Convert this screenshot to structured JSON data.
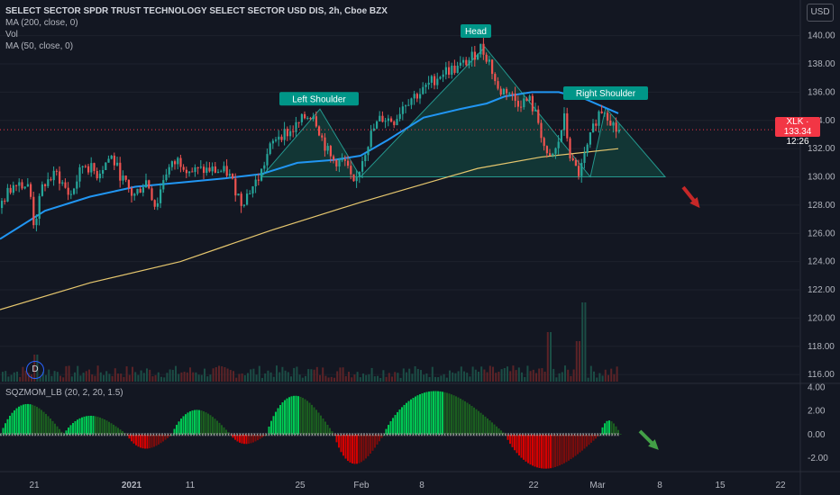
{
  "legend": {
    "title": "SELECT SECTOR SPDR TRUST TECHNOLOGY SELECT SECTOR USD DIS, 2h, Cboe BZX",
    "lines": [
      "MA (200, close, 0)",
      "Vol",
      "MA (50, close, 0)"
    ]
  },
  "indicator_label": "SQZMOM_LB (20, 2, 20, 1.5)",
  "currency": "USD",
  "last_price": {
    "ticker": "XLK",
    "price": "133.34",
    "countdown": "12:26"
  },
  "interval_badge": "D",
  "colors": {
    "up": "#26a69a",
    "down": "#ef5350",
    "ma50": "#2196f3",
    "ma200": "#e6c76e",
    "pattern_fill": "#123a38",
    "pattern_line": "#26a69a",
    "mom_up": "#00c853",
    "mom_up_dim": "#1b5e20",
    "mom_down": "#d50000",
    "mom_down_dim": "#7a0c0c",
    "arrow_down": "#c62828",
    "arrow_green": "#43a047"
  },
  "chart_data": {
    "type": "candlestick",
    "x_ticks": [
      "21",
      "2021",
      "11",
      "25",
      "Feb",
      "8",
      "22",
      "Mar",
      "8",
      "15",
      "22"
    ],
    "y_ticks": [
      "140.00",
      "138.00",
      "136.00",
      "134.00",
      "132.00",
      "130.00",
      "128.00",
      "126.00",
      "124.00",
      "122.00",
      "120.00",
      "118.00",
      "116.00"
    ],
    "ylim": [
      115.5,
      141.0
    ],
    "osc_ticks": [
      "4.00",
      "2.00",
      "0.00",
      "-2.00"
    ],
    "osc_ylim": [
      -3.0,
      4.2
    ],
    "price_path": [
      [
        0,
        127.8
      ],
      [
        10,
        128.8
      ],
      [
        20,
        129.8
      ],
      [
        35,
        129.2
      ],
      [
        40,
        126.5
      ],
      [
        50,
        129.5
      ],
      [
        65,
        130.2
      ],
      [
        80,
        128.6
      ],
      [
        95,
        131.0
      ],
      [
        110,
        130.2
      ],
      [
        125,
        131.5
      ],
      [
        140,
        129.6
      ],
      [
        150,
        128.6
      ],
      [
        165,
        129.8
      ],
      [
        175,
        127.8
      ],
      [
        185,
        130.3
      ],
      [
        200,
        131.2
      ],
      [
        215,
        130.4
      ],
      [
        235,
        130.5
      ],
      [
        255,
        130.3
      ],
      [
        270,
        128.2
      ],
      [
        280,
        129.1
      ],
      [
        290,
        130.0
      ],
      [
        300,
        131.8
      ],
      [
        310,
        133.0
      ],
      [
        325,
        133.2
      ],
      [
        340,
        134.2
      ],
      [
        350,
        134.5
      ],
      [
        360,
        132.6
      ],
      [
        370,
        131.2
      ],
      [
        385,
        131.0
      ],
      [
        395,
        129.2
      ],
      [
        405,
        131.5
      ],
      [
        415,
        133.2
      ],
      [
        425,
        134.2
      ],
      [
        440,
        134.0
      ],
      [
        450,
        135.2
      ],
      [
        460,
        135.7
      ],
      [
        470,
        136.0
      ],
      [
        480,
        136.7
      ],
      [
        495,
        137.5
      ],
      [
        510,
        137.7
      ],
      [
        525,
        138.4
      ],
      [
        535,
        139.2
      ],
      [
        545,
        138.2
      ],
      [
        555,
        136.0
      ],
      [
        565,
        136.2
      ],
      [
        575,
        135.3
      ],
      [
        590,
        135.4
      ],
      [
        600,
        133.8
      ],
      [
        610,
        131.0
      ],
      [
        620,
        132.0
      ],
      [
        628,
        134.2
      ],
      [
        636,
        131.0
      ],
      [
        645,
        130.2
      ],
      [
        655,
        132.3
      ],
      [
        665,
        134.4
      ],
      [
        672,
        134.9
      ],
      [
        680,
        134.0
      ],
      [
        686,
        133.3
      ]
    ],
    "ma50_path": [
      [
        0,
        125.6
      ],
      [
        50,
        127.6
      ],
      [
        100,
        128.6
      ],
      [
        150,
        129.3
      ],
      [
        200,
        129.6
      ],
      [
        250,
        129.9
      ],
      [
        290,
        130.2
      ],
      [
        330,
        131.0
      ],
      [
        370,
        131.2
      ],
      [
        400,
        131.5
      ],
      [
        430,
        132.6
      ],
      [
        470,
        134.2
      ],
      [
        510,
        134.8
      ],
      [
        540,
        135.2
      ],
      [
        560,
        135.7
      ],
      [
        590,
        136.0
      ],
      [
        620,
        136.0
      ],
      [
        650,
        135.5
      ],
      [
        686,
        134.5
      ]
    ],
    "ma200_path": [
      [
        0,
        120.6
      ],
      [
        100,
        122.5
      ],
      [
        200,
        124.0
      ],
      [
        300,
        126.2
      ],
      [
        400,
        128.2
      ],
      [
        470,
        129.5
      ],
      [
        530,
        130.6
      ],
      [
        600,
        131.4
      ],
      [
        686,
        132.0
      ]
    ],
    "volume_ylim": [
      0,
      100
    ],
    "volume_peaks": [
      {
        "x": 608,
        "v": 55
      },
      {
        "x": 648,
        "v": 88
      },
      {
        "x": 640,
        "v": 45
      },
      {
        "x": 40,
        "v": 30
      }
    ],
    "annotations": [
      {
        "label": "Left Shoulder",
        "x": 354,
        "y": 135.5
      },
      {
        "label": "Head",
        "x": 528,
        "y": 140.3
      },
      {
        "label": "Right Shoulder",
        "x": 672,
        "y": 135.9
      }
    ],
    "pattern": {
      "neckline": 130.0,
      "points": [
        [
          290,
          130.0
        ],
        [
          355,
          134.8
        ],
        [
          400,
          130.0
        ],
        [
          538,
          139.2
        ],
        [
          655,
          130.0
        ],
        [
          672,
          134.9
        ],
        [
          738,
          130.0
        ]
      ]
    },
    "momentum": [
      {
        "from": 0,
        "to": 70,
        "peak": 2.6,
        "sign": 1
      },
      {
        "from": 70,
        "to": 140,
        "peak": 1.6,
        "sign": 1
      },
      {
        "from": 140,
        "to": 190,
        "peak": -1.2,
        "sign": -1
      },
      {
        "from": 190,
        "to": 255,
        "peak": 2.1,
        "sign": 1
      },
      {
        "from": 255,
        "to": 295,
        "peak": -0.8,
        "sign": -1
      },
      {
        "from": 295,
        "to": 370,
        "peak": 3.3,
        "sign": 1
      },
      {
        "from": 370,
        "to": 425,
        "peak": -2.5,
        "sign": -1
      },
      {
        "from": 425,
        "to": 560,
        "peak": 3.7,
        "sign": 1
      },
      {
        "from": 560,
        "to": 665,
        "peak": -2.9,
        "sign": -1
      },
      {
        "from": 665,
        "to": 688,
        "peak": 1.2,
        "sign": 1
      }
    ]
  }
}
